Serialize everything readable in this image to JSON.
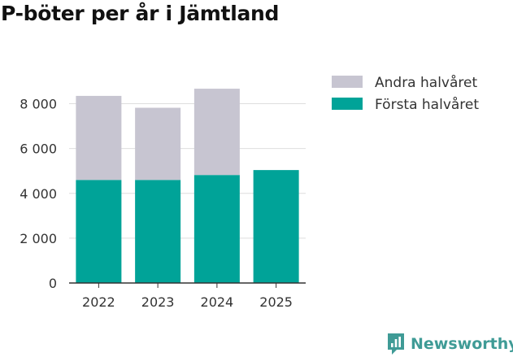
{
  "title": "P-böter per år i Jämtland",
  "chart_data": {
    "type": "bar",
    "stacked": true,
    "categories": [
      "2022",
      "2023",
      "2024",
      "2025"
    ],
    "series": [
      {
        "name": "Första halvåret",
        "values": [
          4600,
          4600,
          4820,
          5040
        ],
        "color": "#00a398"
      },
      {
        "name": "Andra halvåret",
        "values": [
          3750,
          3220,
          3850,
          0
        ],
        "color": "#c7c5d1"
      }
    ],
    "legend_order": [
      "Andra halvåret",
      "Första halvåret"
    ],
    "ylim": [
      0,
      9000
    ],
    "yticks": [
      0,
      2000,
      4000,
      6000,
      8000
    ],
    "ytick_labels": [
      "0",
      "2 000",
      "4 000",
      "6 000",
      "8 000"
    ],
    "xlabel": "",
    "ylabel": "",
    "grid": true,
    "legend_position": "top-right"
  },
  "brand": {
    "name": "Newsworthy",
    "icon": "newsworthy-logo-icon",
    "color": "#3f9b96"
  }
}
